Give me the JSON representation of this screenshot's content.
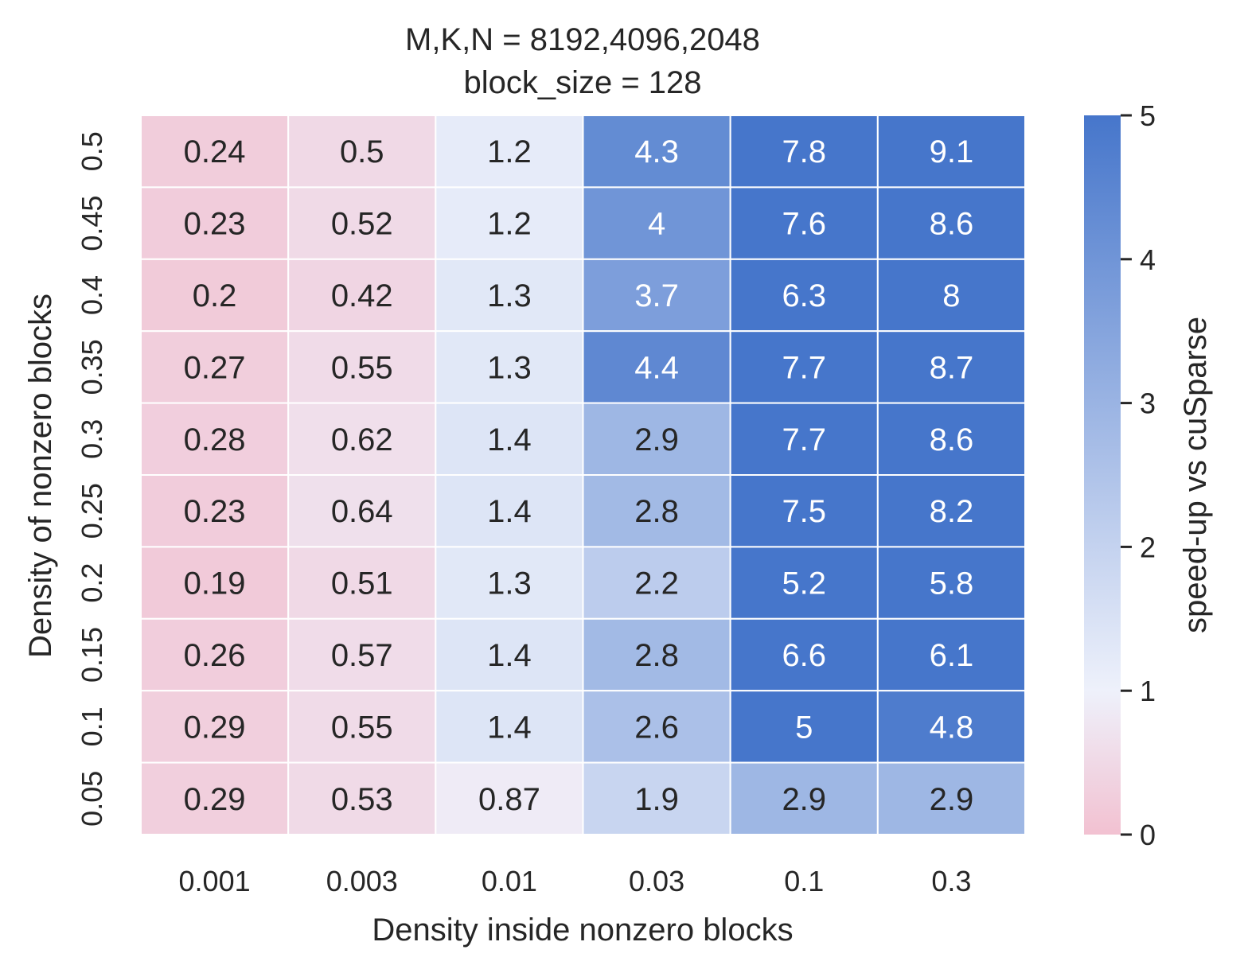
{
  "chart_data": {
    "type": "heatmap",
    "title_lines": [
      "M,K,N = 8192,4096,2048",
      "block_size = 128"
    ],
    "xlabel": "Density inside nonzero blocks",
    "ylabel": "Density of nonzero blocks",
    "x_categories": [
      "0.001",
      "0.003",
      "0.01",
      "0.03",
      "0.1",
      "0.3"
    ],
    "y_categories": [
      "0.5",
      "0.45",
      "0.4",
      "0.35",
      "0.3",
      "0.25",
      "0.2",
      "0.15",
      "0.1",
      "0.05"
    ],
    "values": [
      [
        0.24,
        0.5,
        1.2,
        4.3,
        7.8,
        9.1
      ],
      [
        0.23,
        0.52,
        1.2,
        4,
        7.6,
        8.6
      ],
      [
        0.2,
        0.42,
        1.3,
        3.7,
        6.3,
        8
      ],
      [
        0.27,
        0.55,
        1.3,
        4.4,
        7.7,
        8.7
      ],
      [
        0.28,
        0.62,
        1.4,
        2.9,
        7.7,
        8.6
      ],
      [
        0.23,
        0.64,
        1.4,
        2.8,
        7.5,
        8.2
      ],
      [
        0.19,
        0.51,
        1.3,
        2.2,
        5.2,
        5.8
      ],
      [
        0.26,
        0.57,
        1.4,
        2.8,
        6.6,
        6.1
      ],
      [
        0.29,
        0.55,
        1.4,
        2.6,
        5,
        4.8
      ],
      [
        0.29,
        0.53,
        0.87,
        1.9,
        2.9,
        2.9
      ]
    ],
    "colorbar": {
      "label": "speed-up vs cuSparse",
      "vmin": 0,
      "vmax": 5,
      "center": 1,
      "ticks": [
        "0",
        "1",
        "2",
        "3",
        "4",
        "5"
      ]
    },
    "colors": {
      "low": "#f2c1d1",
      "mid": "#eef1fb",
      "high": "#4676cb",
      "dark_text": "#262626",
      "light_text": "#ffffff"
    }
  }
}
